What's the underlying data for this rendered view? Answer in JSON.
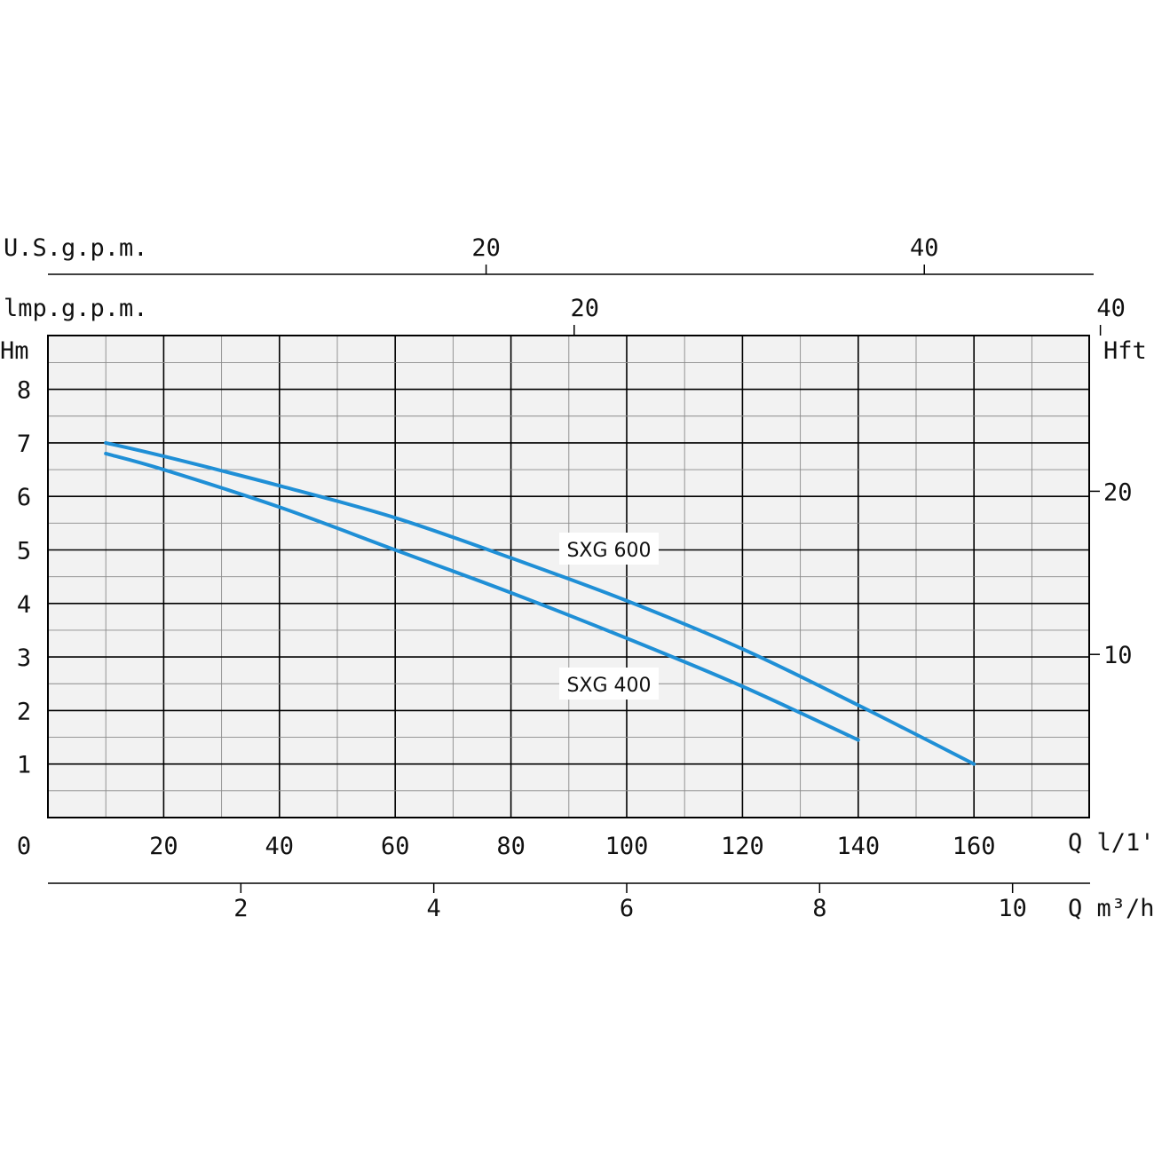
{
  "chart_data": {
    "type": "line",
    "x_unit_label": "Q l/1'",
    "x_ticks": [
      "20",
      "40",
      "60",
      "80",
      "100",
      "120",
      "140",
      "160"
    ],
    "x_origin_label": "0",
    "xlim": [
      0,
      180
    ],
    "y_unit_label": "Hm",
    "y_ticks": [
      "1",
      "2",
      "3",
      "4",
      "5",
      "6",
      "7",
      "8"
    ],
    "ylim": [
      0,
      9
    ],
    "right_axis": {
      "label": "Hft",
      "ticks": [
        {
          "label": "10",
          "value": 10
        },
        {
          "label": "20",
          "value": 20
        }
      ]
    },
    "top_axis_usgpm": {
      "label": "U.S.g.p.m.",
      "ticks": [
        {
          "label": "20",
          "value": 20
        },
        {
          "label": "40",
          "value": 40
        }
      ]
    },
    "top_axis_impgpm": {
      "label": "Imp.g.p.m.",
      "label_display": "lmp.g.p.m.",
      "ticks": [
        {
          "label": "20",
          "value": 20
        },
        {
          "label": "40",
          "value": 40
        }
      ]
    },
    "bottom_axis_m3h": {
      "label": "Q m³/h",
      "ticks": [
        {
          "label": "2",
          "value": 2
        },
        {
          "label": "4",
          "value": 4
        },
        {
          "label": "6",
          "value": 6
        },
        {
          "label": "8",
          "value": 8
        },
        {
          "label": "10",
          "value": 10
        }
      ]
    },
    "grid": true,
    "series": [
      {
        "name": "SXG 600",
        "color": "#1f8fd6",
        "x": [
          10,
          20,
          40,
          60,
          80,
          100,
          120,
          140,
          160
        ],
        "y": [
          7.0,
          6.75,
          6.2,
          5.6,
          4.85,
          4.05,
          3.15,
          2.1,
          1.0
        ]
      },
      {
        "name": "SXG 400",
        "color": "#1f8fd6",
        "x": [
          10,
          20,
          40,
          60,
          80,
          100,
          120,
          140
        ],
        "y": [
          6.8,
          6.5,
          5.8,
          5.0,
          4.2,
          3.35,
          2.45,
          1.45
        ]
      }
    ]
  },
  "colors": {
    "background": "#f2f2f2",
    "grid": "#000000",
    "curve": "#1f8fd6"
  }
}
